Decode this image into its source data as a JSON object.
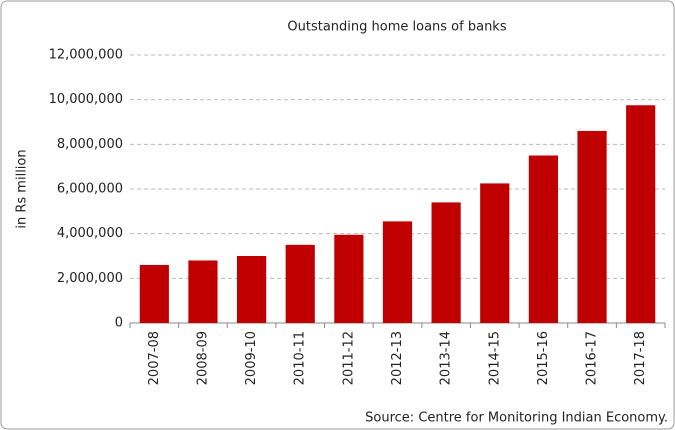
{
  "chart_data": {
    "type": "bar",
    "title": "Outstanding home loans of banks",
    "y_label": "in Rs million",
    "source": "Source: Centre for Monitoring Indian Economy.",
    "categories": [
      "2007-08",
      "2008-09",
      "2009-10",
      "2010-11",
      "2011-12",
      "2012-13",
      "2013-14",
      "2014-15",
      "2015-16",
      "2016-17",
      "2017-18"
    ],
    "values": [
      2600000,
      2800000,
      3000000,
      3500000,
      3950000,
      4550000,
      5400000,
      6250000,
      7500000,
      8600000,
      9750000
    ],
    "color": "#c00000",
    "ylim": [
      0,
      12000000
    ],
    "yticks": [
      0,
      {
        "value": 2000000,
        "label": "2,000,000"
      },
      {
        "value": 4000000,
        "label": "4,000,000"
      },
      {
        "value": 6000000,
        "label": "6,000,000"
      },
      {
        "value": 8000000,
        "label": "8,000,000"
      },
      {
        "value": 10000000,
        "label": "10,000,000"
      },
      {
        "value": 12000000,
        "label": "12,000,000"
      }
    ],
    "grid": true
  }
}
